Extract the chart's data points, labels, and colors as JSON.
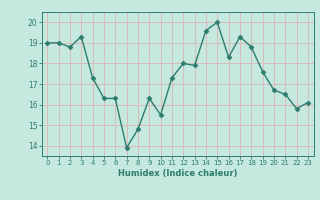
{
  "x": [
    0,
    1,
    2,
    3,
    4,
    5,
    6,
    7,
    8,
    9,
    10,
    11,
    12,
    13,
    14,
    15,
    16,
    17,
    18,
    19,
    20,
    21,
    22,
    23
  ],
  "y": [
    19.0,
    19.0,
    18.8,
    19.3,
    17.3,
    16.3,
    16.3,
    13.9,
    14.8,
    16.3,
    15.5,
    17.3,
    18.0,
    17.9,
    19.6,
    20.0,
    18.3,
    19.3,
    18.8,
    17.6,
    16.7,
    16.5,
    15.8,
    16.1
  ],
  "title": "",
  "xlabel": "Humidex (Indice chaleur)",
  "ylabel": "",
  "xlim": [
    -0.5,
    23.5
  ],
  "ylim": [
    13.5,
    20.5
  ],
  "yticks": [
    14,
    15,
    16,
    17,
    18,
    19,
    20
  ],
  "xticks": [
    0,
    1,
    2,
    3,
    4,
    5,
    6,
    7,
    8,
    9,
    10,
    11,
    12,
    13,
    14,
    15,
    16,
    17,
    18,
    19,
    20,
    21,
    22,
    23
  ],
  "line_color": "#2e7d6e",
  "marker": "D",
  "marker_size": 2.5,
  "bg_color": "#c5e8df",
  "grid_color": "#dbbaba",
  "axis_color": "#2e7d6e",
  "tick_label_color": "#2e7d6e",
  "xlabel_color": "#2e7d6e",
  "line_width": 1.0
}
